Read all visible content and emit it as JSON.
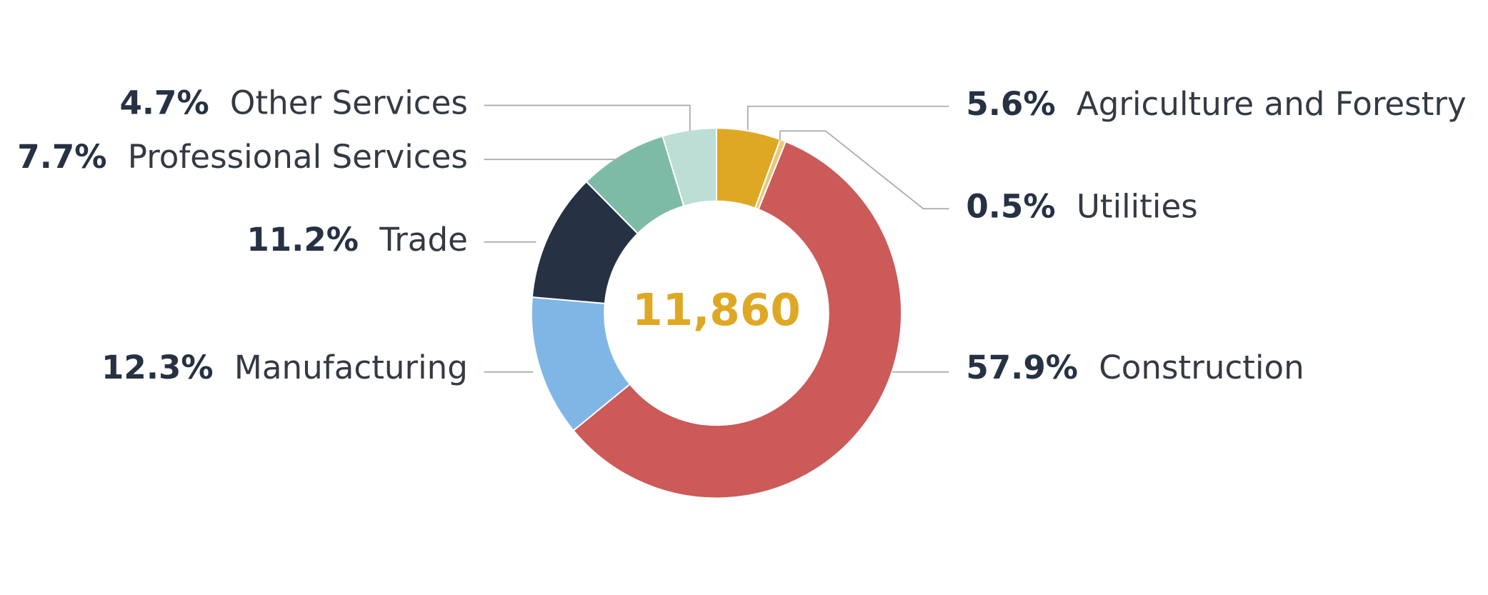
{
  "chart_data": {
    "type": "donut",
    "center_label": "11,860",
    "categories": [
      "Agriculture and Forestry",
      "Utilities",
      "Construction",
      "Manufacturing",
      "Trade",
      "Professional Services",
      "Other Services"
    ],
    "values": [
      5.6,
      0.5,
      57.9,
      12.3,
      11.2,
      7.7,
      4.7
    ],
    "value_labels": [
      "5.6%",
      "0.5%",
      "57.9%",
      "12.3%",
      "11.2%",
      "7.7%",
      "4.7%"
    ],
    "colors": [
      "#dfa824",
      "#ebc777",
      "#cb5a59",
      "#80b6e6",
      "#263143",
      "#7ebba7",
      "#bcded4"
    ]
  }
}
